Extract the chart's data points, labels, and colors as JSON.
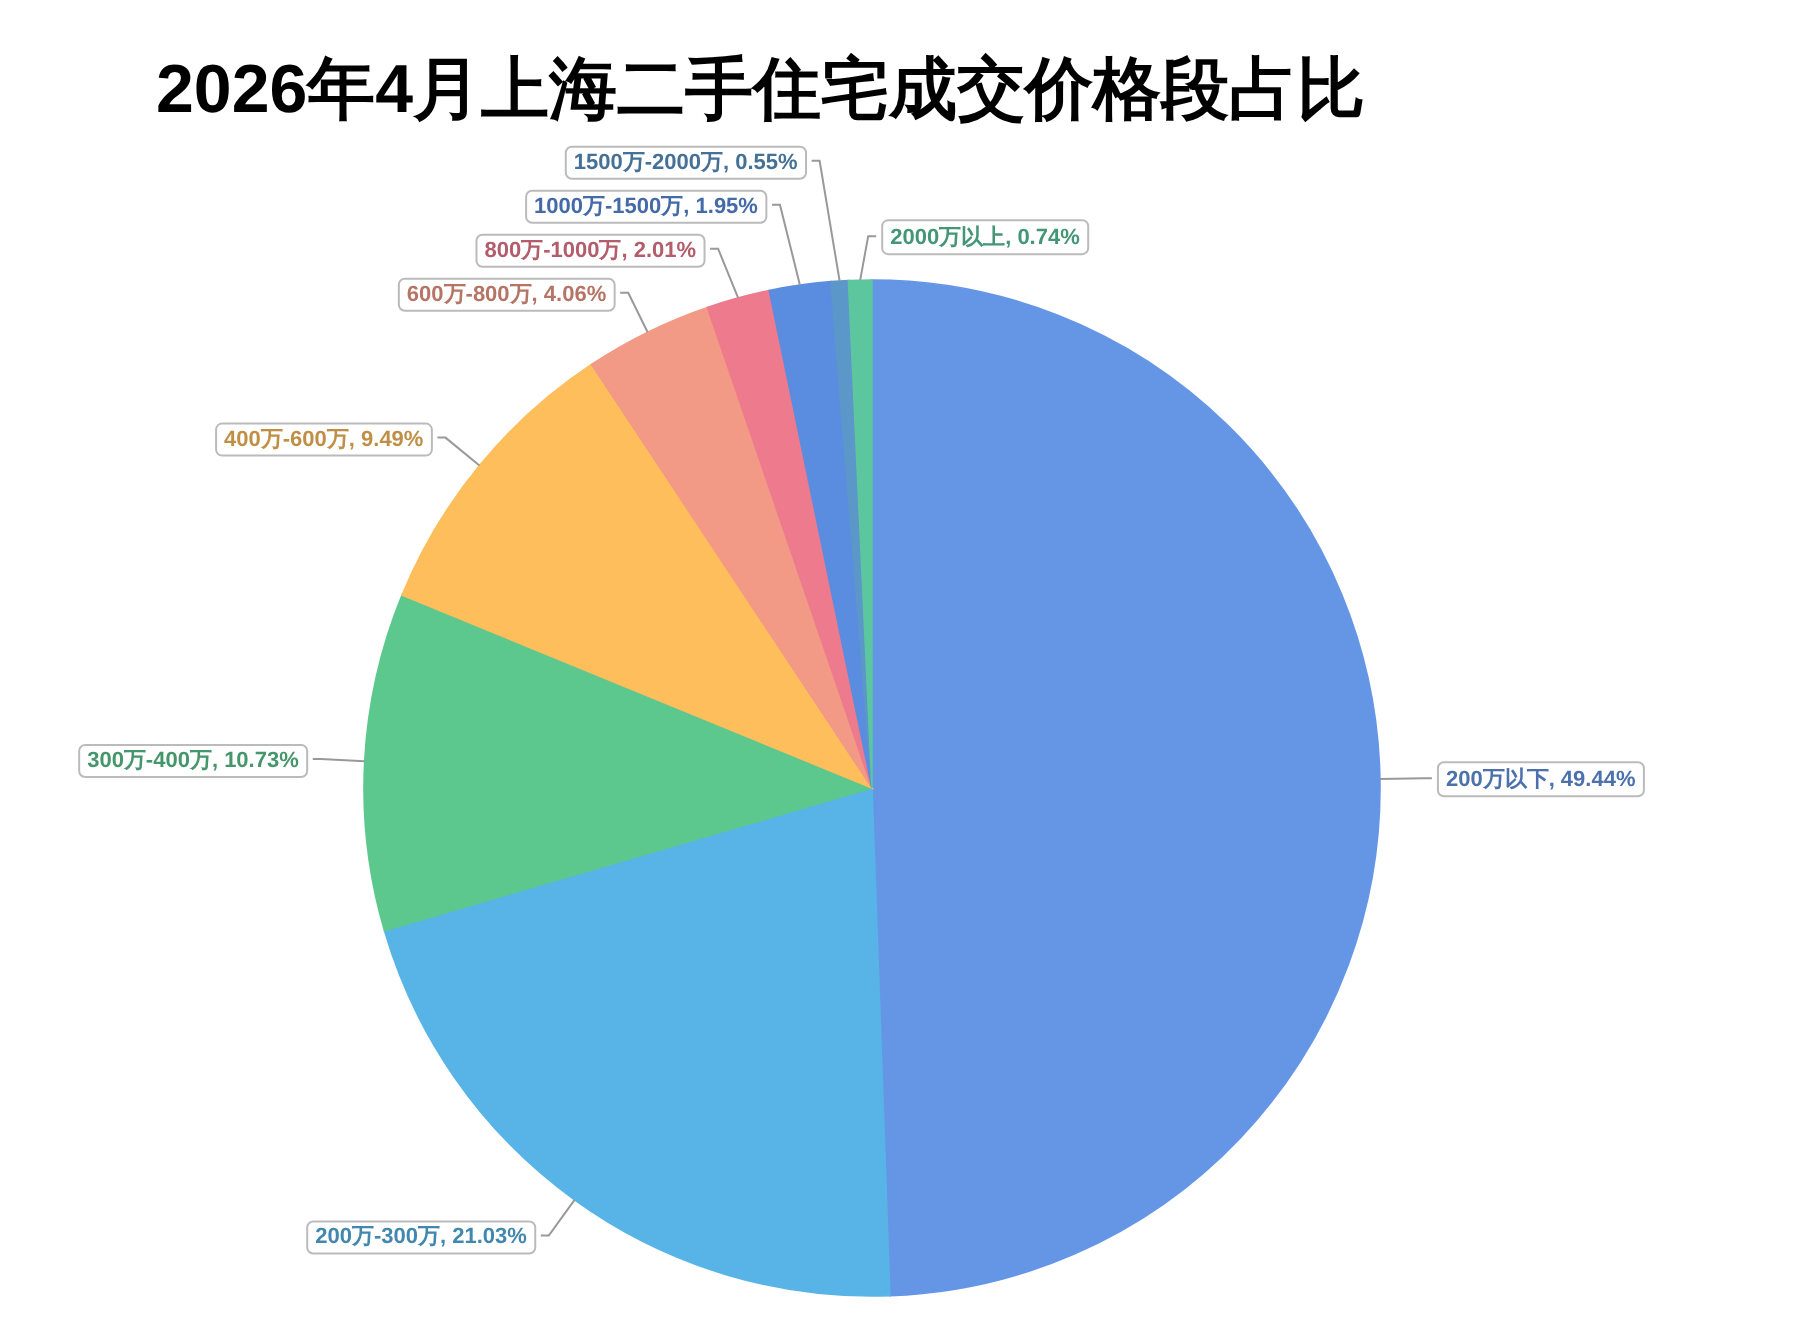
{
  "chart_data": {
    "type": "pie",
    "title": "2026年4月上海二手住宅成交价格段占比",
    "categories": [
      "200万以下",
      "200万-300万",
      "300万-400万",
      "400万-600万",
      "600万-800万",
      "800万-1000万",
      "1000万-1500万",
      "1500万-2000万",
      "2000万以上"
    ],
    "values": [
      49.44,
      21.03,
      10.73,
      9.49,
      4.06,
      2.01,
      1.95,
      0.55,
      0.74
    ],
    "colors": [
      "#6596e6",
      "#58b4e6",
      "#5cc88e",
      "#ffbe5c",
      "#f29a86",
      "#ee7a8e",
      "#5a8ddf",
      "#5c97c9",
      "#5cc79f"
    ],
    "value_labels": [
      ", 49.44%",
      ", 21.03%",
      ", 10.73%",
      ", 9.49%",
      ", 4.06%",
      ", 2.01%",
      ", 1.95%",
      ", 0.55%",
      ", 0.74%"
    ]
  }
}
